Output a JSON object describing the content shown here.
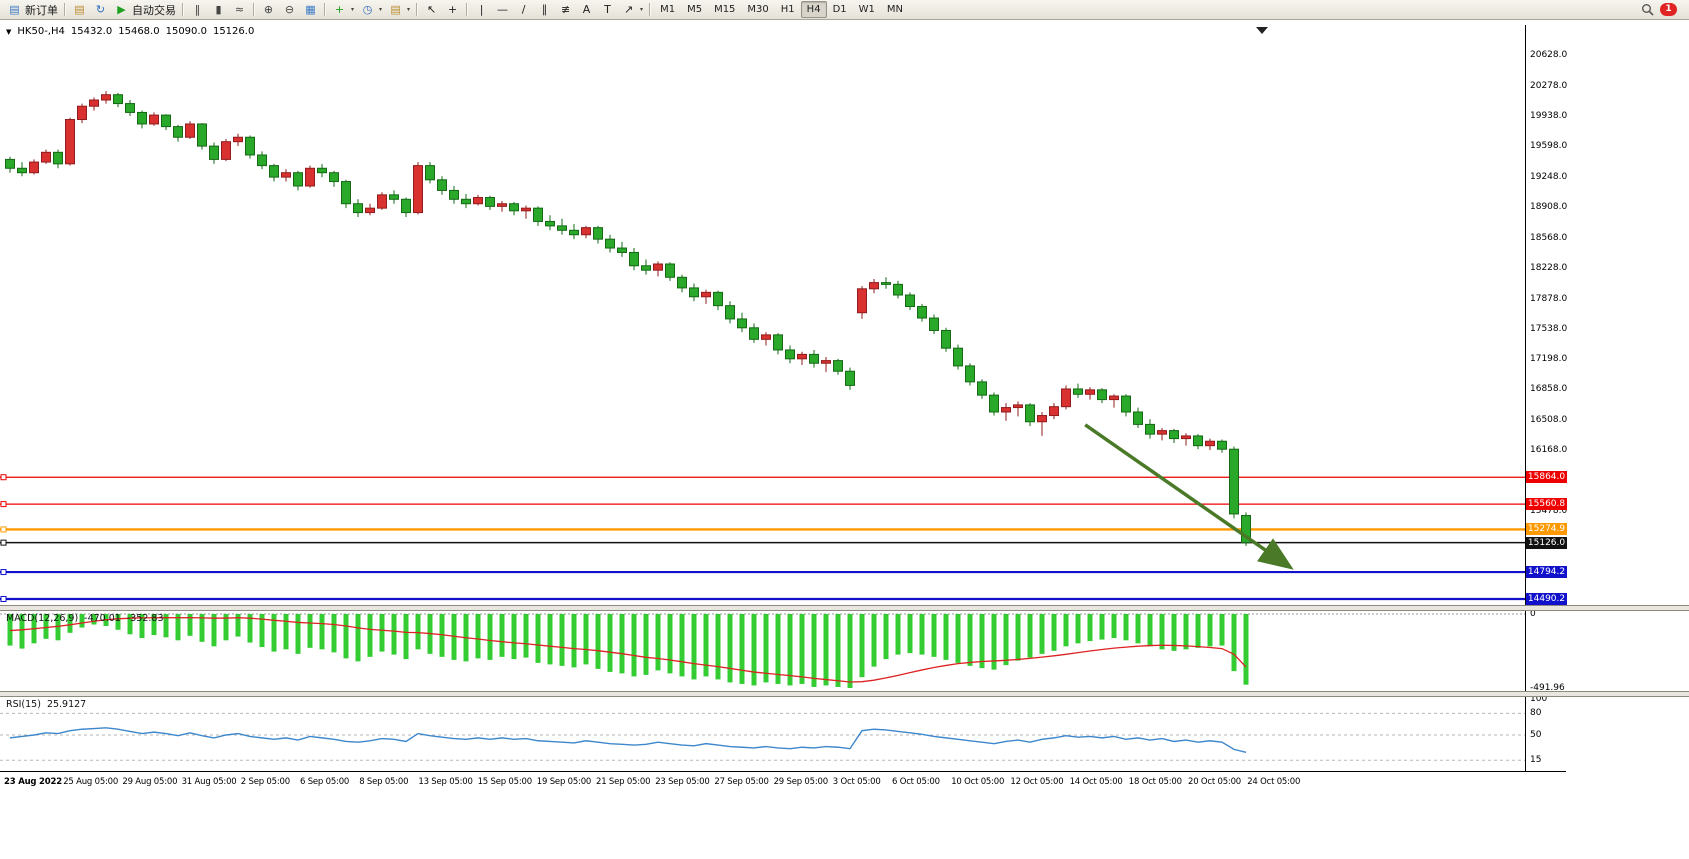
{
  "toolbar": {
    "new_order": "新订单",
    "autotrading": "自动交易",
    "notification_count": "1",
    "timeframes": {
      "options": [
        "M1",
        "M5",
        "M15",
        "M30",
        "H1",
        "H4",
        "D1",
        "W1",
        "MN"
      ],
      "active": "H4"
    },
    "items": [
      {
        "type": "button",
        "name": "new-order-button",
        "glyph": "▤",
        "color": "#3a79c4",
        "label_key": "new_order"
      },
      {
        "type": "sep"
      },
      {
        "type": "icon",
        "name": "profiles-button",
        "glyph": "▤",
        "color": "#b98c2f"
      },
      {
        "type": "icon",
        "name": "refresh-button",
        "glyph": "↻",
        "color": "#2e6fc0"
      },
      {
        "type": "button",
        "name": "autotrading-button",
        "glyph": "▶",
        "color": "#1fa11f",
        "label_key": "autotrading"
      },
      {
        "type": "sep"
      },
      {
        "type": "icon",
        "name": "bar-chart-button",
        "glyph": "‖",
        "color": "#444444"
      },
      {
        "type": "icon",
        "name": "candlestick-chart-button",
        "glyph": "▮",
        "color": "#444444"
      },
      {
        "type": "icon",
        "name": "line-chart-button",
        "glyph": "≈",
        "color": "#444444"
      },
      {
        "type": "sep"
      },
      {
        "type": "icon",
        "name": "zoom-in-button",
        "glyph": "⊕",
        "color": "#444444"
      },
      {
        "type": "icon",
        "name": "zoom-out-button",
        "glyph": "⊖",
        "color": "#444444"
      },
      {
        "type": "icon",
        "name": "tile-windows-button",
        "glyph": "▦",
        "color": "#3a79c4"
      },
      {
        "type": "sep"
      },
      {
        "type": "icon",
        "name": "indicators-button",
        "glyph": "+",
        "color": "#1fa11f",
        "caret": true
      },
      {
        "type": "icon",
        "name": "periods-button",
        "glyph": "◷",
        "color": "#2e6fc0",
        "caret": true
      },
      {
        "type": "icon",
        "name": "templates-button",
        "glyph": "▤",
        "color": "#b98c2f",
        "caret": true
      },
      {
        "type": "sep"
      },
      {
        "type": "icon",
        "name": "cursor-button",
        "glyph": "↖",
        "color": "#222222"
      },
      {
        "type": "icon",
        "name": "crosshair-button",
        "glyph": "+",
        "color": "#222222"
      },
      {
        "type": "sep"
      },
      {
        "type": "icon",
        "name": "vertical-line-button",
        "glyph": "|",
        "color": "#222222"
      },
      {
        "type": "icon",
        "name": "horizontal-line-button",
        "glyph": "—",
        "color": "#222222"
      },
      {
        "type": "icon",
        "name": "trendline-button",
        "glyph": "/",
        "color": "#222222"
      },
      {
        "type": "icon",
        "name": "equidistant-channel-button",
        "glyph": "∥",
        "color": "#222222"
      },
      {
        "type": "icon",
        "name": "fibonacci-button",
        "glyph": "≢",
        "color": "#222222"
      },
      {
        "type": "icon",
        "name": "text-button",
        "glyph": "A",
        "color": "#222222"
      },
      {
        "type": "icon",
        "name": "text-label-button",
        "glyph": "T",
        "color": "#222222"
      },
      {
        "type": "icon",
        "name": "arrows-button",
        "glyph": "↗",
        "color": "#222222",
        "caret": true
      },
      {
        "type": "sep"
      },
      {
        "type": "timeframes",
        "name": "timeframe-group"
      },
      {
        "type": "spacer"
      },
      {
        "type": "search",
        "name": "search-button"
      },
      {
        "type": "badge",
        "name": "notification-badge",
        "label_key": "notification_count"
      }
    ]
  },
  "chart": {
    "type": "candlestick",
    "symbol_period": "HK50-,H4",
    "open": "15432.0",
    "high": "15468.0",
    "low": "15090.0",
    "close": "15126.0",
    "bull_color": "#d93030",
    "bull_stroke": "#8f1d1d",
    "bear_color": "#2aa82a",
    "bear_stroke": "#156815",
    "price_axis_labels": [
      "20628.0",
      "20278.0",
      "19938.0",
      "19598.0",
      "19248.0",
      "18908.0",
      "18568.0",
      "18228.0",
      "17878.0",
      "17538.0",
      "17198.0",
      "16858.0",
      "16508.0",
      "16168.0",
      "15478.0"
    ],
    "hlines": [
      {
        "name": "resistance-line-1",
        "price": 15864.0,
        "label": "15864.0",
        "color": "#ee0000",
        "width": 1.3
      },
      {
        "name": "resistance-line-2",
        "price": 15560.8,
        "label": "15560.8",
        "color": "#ee0000",
        "width": 1.3
      },
      {
        "name": "orange-level-line",
        "price": 15274.9,
        "label": "15274.9",
        "color": "#ff9900",
        "width": 2.4
      },
      {
        "name": "current-price-line",
        "price": 15126.0,
        "label": "15126.0",
        "color": "#111111",
        "width": 1.4
      },
      {
        "name": "support-line-1",
        "price": 14794.2,
        "label": "14794.2",
        "color": "#1111cc",
        "width": 2.2
      },
      {
        "name": "support-line-2",
        "price": 14490.2,
        "label": "14490.2",
        "color": "#1111cc",
        "width": 2.2
      }
    ],
    "time_axis": [
      "23 Aug 2022",
      "25 Aug 05:00",
      "29 Aug 05:00",
      "31 Aug 05:00",
      "2 Sep 05:00",
      "6 Sep 05:00",
      "8 Sep 05:00",
      "13 Sep 05:00",
      "15 Sep 05:00",
      "19 Sep 05:00",
      "21 Sep 05:00",
      "23 Sep 05:00",
      "27 Sep 05:00",
      "29 Sep 05:00",
      "3 Oct 05:00",
      "6 Oct 05:00",
      "10 Oct 05:00",
      "12 Oct 05:00",
      "14 Oct 05:00",
      "18 Oct 05:00",
      "20 Oct 05:00",
      "24 Oct 05:00"
    ],
    "trend_arrow": {
      "from_index": 89.6,
      "from_price": 16455,
      "to_index": 106.5,
      "to_price": 14865,
      "color": "#4a7a28"
    },
    "candles": [
      [
        19450,
        19480,
        19300,
        19350
      ],
      [
        19350,
        19420,
        19260,
        19300
      ],
      [
        19300,
        19450,
        19280,
        19420
      ],
      [
        19420,
        19560,
        19400,
        19530
      ],
      [
        19530,
        19560,
        19350,
        19400
      ],
      [
        19400,
        19920,
        19380,
        19900
      ],
      [
        19900,
        20080,
        19860,
        20050
      ],
      [
        20050,
        20150,
        20000,
        20120
      ],
      [
        20120,
        20220,
        20080,
        20180
      ],
      [
        20180,
        20200,
        20040,
        20080
      ],
      [
        20080,
        20120,
        19940,
        19980
      ],
      [
        19980,
        20000,
        19800,
        19850
      ],
      [
        19850,
        19980,
        19830,
        19950
      ],
      [
        19950,
        19960,
        19780,
        19820
      ],
      [
        19820,
        19840,
        19650,
        19700
      ],
      [
        19700,
        19880,
        19680,
        19850
      ],
      [
        19850,
        19860,
        19560,
        19600
      ],
      [
        19600,
        19640,
        19400,
        19450
      ],
      [
        19450,
        19680,
        19430,
        19650
      ],
      [
        19650,
        19740,
        19600,
        19700
      ],
      [
        19700,
        19720,
        19460,
        19500
      ],
      [
        19500,
        19540,
        19340,
        19380
      ],
      [
        19380,
        19400,
        19200,
        19250
      ],
      [
        19250,
        19340,
        19200,
        19300
      ],
      [
        19300,
        19320,
        19100,
        19150
      ],
      [
        19150,
        19380,
        19130,
        19350
      ],
      [
        19350,
        19400,
        19250,
        19300
      ],
      [
        19300,
        19320,
        19140,
        19200
      ],
      [
        19200,
        19220,
        18900,
        18950
      ],
      [
        18950,
        19000,
        18800,
        18850
      ],
      [
        18850,
        18950,
        18820,
        18900
      ],
      [
        18900,
        19080,
        18880,
        19050
      ],
      [
        19050,
        19100,
        18950,
        19000
      ],
      [
        19000,
        19020,
        18800,
        18850
      ],
      [
        18850,
        19420,
        18830,
        19380
      ],
      [
        19380,
        19420,
        19180,
        19220
      ],
      [
        19220,
        19260,
        19050,
        19100
      ],
      [
        19100,
        19150,
        18950,
        19000
      ],
      [
        19000,
        19060,
        18900,
        18950
      ],
      [
        18950,
        19050,
        18930,
        19020
      ],
      [
        19020,
        19040,
        18880,
        18920
      ],
      [
        18920,
        18980,
        18860,
        18950
      ],
      [
        18950,
        18970,
        18820,
        18870
      ],
      [
        18870,
        18930,
        18780,
        18900
      ],
      [
        18900,
        18920,
        18700,
        18750
      ],
      [
        18750,
        18820,
        18650,
        18700
      ],
      [
        18700,
        18780,
        18600,
        18650
      ],
      [
        18650,
        18720,
        18550,
        18600
      ],
      [
        18600,
        18700,
        18560,
        18680
      ],
      [
        18680,
        18700,
        18500,
        18550
      ],
      [
        18550,
        18600,
        18400,
        18450
      ],
      [
        18450,
        18520,
        18350,
        18400
      ],
      [
        18400,
        18450,
        18200,
        18250
      ],
      [
        18250,
        18320,
        18150,
        18200
      ],
      [
        18200,
        18300,
        18130,
        18270
      ],
      [
        18270,
        18290,
        18080,
        18120
      ],
      [
        18120,
        18150,
        17950,
        18000
      ],
      [
        18000,
        18050,
        17850,
        17900
      ],
      [
        17900,
        17980,
        17820,
        17950
      ],
      [
        17950,
        17970,
        17750,
        17800
      ],
      [
        17800,
        17850,
        17600,
        17650
      ],
      [
        17650,
        17720,
        17500,
        17550
      ],
      [
        17550,
        17600,
        17380,
        17420
      ],
      [
        17420,
        17500,
        17350,
        17470
      ],
      [
        17470,
        17490,
        17250,
        17300
      ],
      [
        17300,
        17350,
        17150,
        17200
      ],
      [
        17200,
        17280,
        17130,
        17250
      ],
      [
        17250,
        17300,
        17100,
        17150
      ],
      [
        17150,
        17220,
        17050,
        17180
      ],
      [
        17180,
        17200,
        17020,
        17060
      ],
      [
        17060,
        17100,
        16850,
        16900
      ],
      [
        17720,
        18020,
        17650,
        17990
      ],
      [
        17990,
        18100,
        17940,
        18060
      ],
      [
        18060,
        18120,
        17990,
        18040
      ],
      [
        18040,
        18080,
        17880,
        17920
      ],
      [
        17920,
        17950,
        17750,
        17790
      ],
      [
        17790,
        17820,
        17620,
        17660
      ],
      [
        17660,
        17700,
        17480,
        17520
      ],
      [
        17520,
        17550,
        17280,
        17320
      ],
      [
        17320,
        17360,
        17080,
        17120
      ],
      [
        17120,
        17150,
        16900,
        16940
      ],
      [
        16940,
        16970,
        16750,
        16790
      ],
      [
        16790,
        16820,
        16560,
        16600
      ],
      [
        16600,
        16700,
        16500,
        16650
      ],
      [
        16650,
        16720,
        16550,
        16680
      ],
      [
        16680,
        16700,
        16440,
        16490
      ],
      [
        16490,
        16600,
        16330,
        16560
      ],
      [
        16560,
        16700,
        16520,
        16660
      ],
      [
        16660,
        16900,
        16630,
        16860
      ],
      [
        16860,
        16920,
        16760,
        16800
      ],
      [
        16800,
        16880,
        16740,
        16850
      ],
      [
        16850,
        16870,
        16700,
        16740
      ],
      [
        16740,
        16800,
        16650,
        16780
      ],
      [
        16780,
        16800,
        16550,
        16600
      ],
      [
        16600,
        16650,
        16420,
        16460
      ],
      [
        16460,
        16520,
        16300,
        16350
      ],
      [
        16350,
        16420,
        16280,
        16390
      ],
      [
        16390,
        16410,
        16250,
        16300
      ],
      [
        16300,
        16360,
        16220,
        16330
      ],
      [
        16330,
        16350,
        16180,
        16220
      ],
      [
        16220,
        16300,
        16170,
        16270
      ],
      [
        16270,
        16290,
        16140,
        16180
      ],
      [
        16180,
        16210,
        15400,
        15450
      ],
      [
        15432,
        15468,
        15090,
        15126
      ]
    ]
  },
  "macd": {
    "label": "MACD(12,26,9)",
    "value": "-470.01",
    "signal": "-352.83",
    "axis_labels": [
      "0",
      "-491.96"
    ],
    "axis_values": [
      0,
      -491.96
    ],
    "hist_color": "#33cc33",
    "signal_color": "#dd2222",
    "histogram": [
      -210,
      -230,
      -195,
      -165,
      -175,
      -125,
      -90,
      -70,
      -80,
      -105,
      -135,
      -160,
      -140,
      -155,
      -175,
      -145,
      -185,
      -215,
      -175,
      -150,
      -190,
      -220,
      -250,
      -235,
      -265,
      -225,
      -235,
      -255,
      -295,
      -315,
      -285,
      -250,
      -270,
      -300,
      -235,
      -265,
      -285,
      -305,
      -315,
      -295,
      -305,
      -285,
      -300,
      -290,
      -325,
      -335,
      -345,
      -355,
      -335,
      -365,
      -385,
      -395,
      -415,
      -405,
      -375,
      -395,
      -415,
      -435,
      -415,
      -435,
      -455,
      -465,
      -475,
      -455,
      -465,
      -475,
      -465,
      -485,
      -475,
      -485,
      -492,
      -420,
      -350,
      -300,
      -270,
      -260,
      -270,
      -285,
      -305,
      -325,
      -345,
      -360,
      -370,
      -340,
      -310,
      -290,
      -265,
      -245,
      -215,
      -195,
      -180,
      -170,
      -160,
      -175,
      -195,
      -215,
      -235,
      -245,
      -235,
      -225,
      -215,
      -210,
      -380,
      -470.01
    ],
    "signal_line": [
      -110,
      -105,
      -98,
      -90,
      -82,
      -72,
      -60,
      -48,
      -38,
      -32,
      -28,
      -26,
      -25,
      -24,
      -25,
      -24,
      -26,
      -28,
      -27,
      -25,
      -28,
      -34,
      -42,
      -48,
      -56,
      -60,
      -64,
      -70,
      -80,
      -92,
      -102,
      -108,
      -114,
      -122,
      -124,
      -130,
      -138,
      -148,
      -158,
      -166,
      -176,
      -184,
      -192,
      -198,
      -206,
      -214,
      -222,
      -230,
      -236,
      -244,
      -254,
      -264,
      -276,
      -288,
      -296,
      -306,
      -318,
      -330,
      -340,
      -350,
      -362,
      -374,
      -386,
      -394,
      -402,
      -410,
      -418,
      -428,
      -436,
      -444,
      -452,
      -450,
      -440,
      -425,
      -408,
      -390,
      -372,
      -356,
      -342,
      -330,
      -322,
      -316,
      -312,
      -308,
      -302,
      -295,
      -287,
      -278,
      -268,
      -257,
      -246,
      -236,
      -227,
      -220,
      -214,
      -210,
      -208,
      -209,
      -212,
      -217,
      -223,
      -230,
      -268,
      -352.83
    ]
  },
  "rsi": {
    "label": "RSI(15)",
    "value": "25.9127",
    "axis_values": [
      100,
      80,
      50,
      15
    ],
    "levels": [
      80,
      50,
      15
    ],
    "line_color": "#3d87cc",
    "values": [
      46,
      48,
      50,
      53,
      52,
      56,
      58,
      59,
      60,
      58,
      55,
      52,
      54,
      52,
      49,
      53,
      49,
      46,
      50,
      52,
      48,
      46,
      44,
      46,
      43,
      48,
      46,
      44,
      41,
      40,
      42,
      45,
      44,
      41,
      52,
      49,
      47,
      45,
      44,
      46,
      44,
      46,
      44,
      45,
      42,
      41,
      40,
      39,
      42,
      40,
      38,
      37,
      36,
      37,
      40,
      38,
      36,
      35,
      38,
      36,
      34,
      33,
      32,
      34,
      32,
      31,
      33,
      32,
      34,
      33,
      31,
      56,
      58,
      57,
      55,
      53,
      51,
      48,
      46,
      44,
      42,
      40,
      38,
      41,
      43,
      40,
      44,
      46,
      49,
      47,
      48,
      46,
      48,
      44,
      46,
      43,
      45,
      41,
      43,
      40,
      42,
      40,
      30,
      25.9127
    ]
  }
}
